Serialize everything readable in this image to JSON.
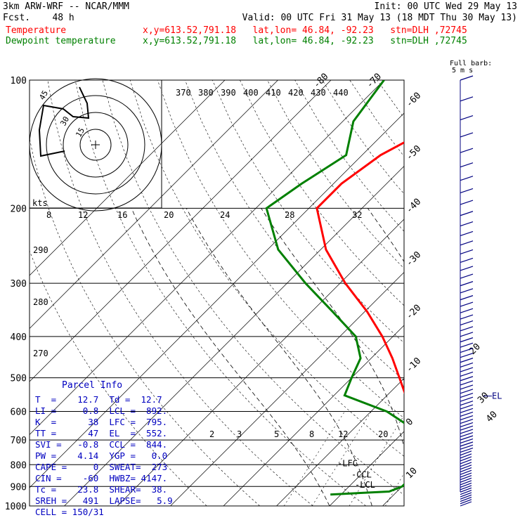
{
  "header": {
    "model": "3km ARW-WRF -- NCAR/MMM",
    "fcst": "Fcst.    48 h",
    "init": "Init: 00 UTC Wed 29 May 13",
    "valid": "Valid: 00 UTC Fri 31 May 13 (18 MDT Thu 30 May 13)",
    "temp_label": "Temperature",
    "temp_info": "x,y=613.52,791.18   lat,lon= 46.84, -92.23   stn=DLH ,72745",
    "dew_label": "Dewpoint temperature",
    "dew_info": "x,y=613.52,791.18   lat,lon= 46.84, -92.23   stn=DLH ,72745",
    "barb_legend_1": "Full barb:",
    "barb_legend_2": "5 m s",
    "colors": {
      "temperature": "#ff0000",
      "dewpoint": "#008000",
      "parcel_info": "#0000c0",
      "wind": "#000080"
    }
  },
  "chart_data": {
    "type": "line",
    "title": "",
    "xlabel": "",
    "ylabel": "",
    "ylim": [
      1000,
      100
    ],
    "y_scale": "log-pressure",
    "pressure_ticks": [
      "100",
      "200",
      "300",
      "400",
      "500",
      "600",
      "700",
      "800",
      "900",
      "1000"
    ],
    "isotherm_labels": [
      "-80",
      "-70",
      "-60",
      "-50",
      "-40",
      "-30",
      "-20",
      "-10",
      "0",
      "10",
      "20",
      "30",
      "40"
    ],
    "theta_labels": [
      "370",
      "380",
      "390",
      "400",
      "410",
      "420",
      "430",
      "440"
    ],
    "left_theta_labels": [
      "290",
      "280",
      "270"
    ],
    "mixing_ratio_labels": [
      "2",
      "3",
      "5",
      "8",
      "12",
      "20"
    ],
    "series": [
      {
        "name": "Temperature",
        "pressure": [
          940,
          925,
          900,
          880,
          850,
          800,
          750,
          700,
          650,
          600,
          550,
          500,
          450,
          400,
          350,
          300,
          250,
          200,
          175,
          150,
          125,
          100
        ],
        "values": [
          17.6,
          22.0,
          18.0,
          16.0,
          12.7,
          9.5,
          6.5,
          3.5,
          0.5,
          -2.8,
          -6.5,
          -11.0,
          -16.0,
          -22.0,
          -29.5,
          -39.0,
          -49.0,
          -58.5,
          -58.5,
          -56.5,
          -51.0,
          -48.0
        ]
      },
      {
        "name": "Dewpoint temperature",
        "pressure": [
          940,
          925,
          900,
          880,
          850,
          800,
          750,
          700,
          650,
          600,
          550,
          500,
          450,
          400,
          350,
          300,
          250,
          200,
          175,
          150,
          125,
          100
        ],
        "values": [
          -2.0,
          8.5,
          10.0,
          10.0,
          9.0,
          8.0,
          6.0,
          3.5,
          0.0,
          -7.0,
          -18.0,
          -20.0,
          -22.0,
          -27.0,
          -36.0,
          -46.5,
          -58.0,
          -68.0,
          -66.0,
          -63.0,
          -68.0,
          -70.0
        ]
      }
    ],
    "levels": [
      {
        "label": "-LFC",
        "pressure": 795
      },
      {
        "label": "-CCL",
        "pressure": 844
      },
      {
        "label": "-LCL",
        "pressure": 892
      },
      {
        "label": "EL",
        "pressure": 552
      }
    ],
    "hodograph": {
      "units_label": "kts",
      "ring_labels": [
        "15",
        "30",
        "45"
      ],
      "ticks": [
        "8",
        "12",
        "16",
        "20",
        "24",
        "28",
        "32"
      ]
    }
  },
  "parcel": {
    "title": "Parcel  Info",
    "rows": [
      "T  =    12.7  Td =  12.7",
      "LI =     0.8  LCL =  892.",
      "K  =      38  LFC =  795.",
      "TT =      47  EL  =  552.",
      "SVI =   -0.8  CCL =  844.",
      "PW =    4.14  YGP =   0.0",
      "CAPE =     0  SWEAT=  273",
      "CIN =    -60  HWBZ= 4147.",
      "Tc =    23.8  SHEAR=  38.",
      "SREH =   491  LAPSE=   5.9",
      "CELL = 150/31"
    ]
  }
}
